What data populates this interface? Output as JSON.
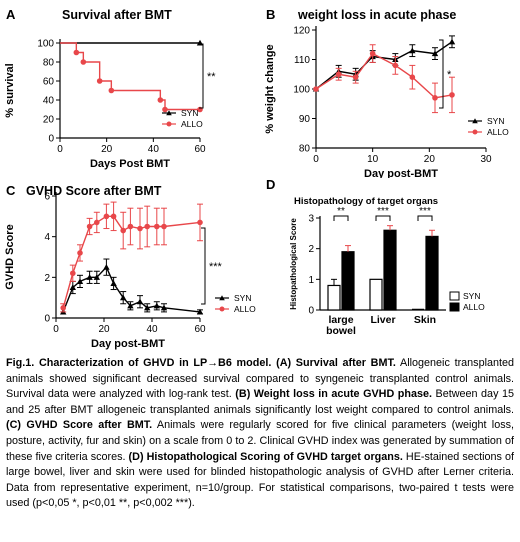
{
  "chart_data": [
    {
      "panel": "A",
      "type": "line",
      "step": true,
      "title": "Survival after BMT",
      "xlabel": "Days Post BMT",
      "ylabel": "% survival",
      "xlim": [
        0,
        60
      ],
      "ylim": [
        0,
        100
      ],
      "xticks": [
        "0",
        "20",
        "40",
        "60"
      ],
      "yticks": [
        "0",
        "20",
        "40",
        "60",
        "80",
        "100"
      ],
      "legend_position": "bottom-right",
      "significance": "**",
      "series": [
        {
          "name": "SYN",
          "color": "#000000",
          "marker": "triangle",
          "x": [
            0,
            60
          ],
          "y": [
            100,
            100
          ]
        },
        {
          "name": "ALLO",
          "color": "#e8474a",
          "marker": "circle",
          "x": [
            0,
            7,
            10,
            17,
            22,
            43,
            45,
            60
          ],
          "y": [
            100,
            90,
            80,
            60,
            50,
            40,
            30,
            30
          ]
        }
      ]
    },
    {
      "panel": "B",
      "type": "line",
      "title": "weight loss in acute phase",
      "xlabel": "Day post-BMT",
      "ylabel": "% weight change",
      "xlim": [
        0,
        30
      ],
      "ylim": [
        80,
        120
      ],
      "xticks": [
        "0",
        "10",
        "20",
        "30"
      ],
      "yticks": [
        "80",
        "90",
        "100",
        "110",
        "120"
      ],
      "legend_position": "bottom-right",
      "significance": "*",
      "series": [
        {
          "name": "SYN",
          "color": "#000000",
          "marker": "triangle",
          "x": [
            0,
            4,
            7,
            10,
            14,
            17,
            21,
            24
          ],
          "y": [
            100,
            106,
            105,
            111,
            110,
            113,
            112,
            116
          ],
          "err": [
            0,
            2,
            2,
            2,
            2,
            2,
            2,
            2
          ]
        },
        {
          "name": "ALLO",
          "color": "#e8474a",
          "marker": "circle",
          "x": [
            0,
            4,
            7,
            10,
            14,
            17,
            21,
            24
          ],
          "y": [
            100,
            105,
            104,
            112,
            108,
            104,
            97,
            98
          ],
          "err": [
            0,
            2,
            2,
            3,
            3,
            4,
            5,
            6
          ]
        }
      ]
    },
    {
      "panel": "C",
      "type": "line",
      "title": "GVHD Score after BMT",
      "xlabel": "Day post-BMT",
      "ylabel": "GVHD Score",
      "xlim": [
        0,
        60
      ],
      "ylim": [
        0,
        6
      ],
      "xticks": [
        "0",
        "20",
        "40",
        "60"
      ],
      "yticks": [
        "0",
        "2",
        "4",
        "6"
      ],
      "legend_position": "bottom-right",
      "significance": "***",
      "series": [
        {
          "name": "SYN",
          "color": "#000000",
          "marker": "triangle",
          "x": [
            3,
            7,
            10,
            14,
            17,
            21,
            24,
            28,
            31,
            35,
            38,
            42,
            45,
            60
          ],
          "y": [
            0.3,
            1.5,
            1.8,
            2.0,
            2.0,
            2.5,
            1.7,
            1.0,
            0.6,
            0.8,
            0.5,
            0.6,
            0.5,
            0.3
          ],
          "err": [
            0,
            0.3,
            0.3,
            0.3,
            0.3,
            0.4,
            0.3,
            0.3,
            0.2,
            0.3,
            0.2,
            0.2,
            0.2,
            0.1
          ]
        },
        {
          "name": "ALLO",
          "color": "#e8474a",
          "marker": "circle",
          "x": [
            3,
            7,
            10,
            14,
            17,
            21,
            24,
            28,
            31,
            35,
            38,
            42,
            45,
            60
          ],
          "y": [
            0.5,
            2.2,
            3.2,
            4.5,
            4.7,
            5.0,
            5.0,
            4.3,
            4.5,
            4.4,
            4.5,
            4.5,
            4.5,
            4.7
          ],
          "err": [
            0.2,
            0.4,
            0.4,
            0.4,
            0.5,
            0.6,
            0.7,
            0.9,
            0.9,
            1.0,
            1.0,
            0.9,
            0.9,
            0.9
          ]
        }
      ]
    },
    {
      "panel": "D",
      "type": "bar",
      "title": "Histopathology of target organs",
      "ylabel": "Histopathological Score",
      "ylim": [
        0,
        3
      ],
      "yticks": [
        "0",
        "1",
        "2",
        "3"
      ],
      "categories": [
        [
          "large",
          "bowel"
        ],
        [
          "Liver"
        ],
        [
          "Skin"
        ]
      ],
      "legend_position": "right",
      "series": [
        {
          "name": "SYN",
          "color": "#ffffff",
          "values": [
            0.8,
            1.0,
            0.0
          ],
          "err": [
            0.2,
            0.0,
            0.0
          ]
        },
        {
          "name": "ALLO",
          "color": "#000000",
          "values": [
            1.9,
            2.6,
            2.4
          ],
          "err": [
            0.2,
            0.15,
            0.2
          ]
        }
      ],
      "significance": [
        "**",
        "***",
        "***"
      ]
    }
  ],
  "panel_letters": {
    "a": "A",
    "b": "B",
    "c": "C",
    "d": "D"
  },
  "caption": {
    "label": "Fig.1.",
    "head": "Characterization of GHVD in LP→B6 model.",
    "a_title": "(A) Survival after BMT.",
    "a_text": " Allogeneic transplanted animals showed significant decreased survival compared to syngeneic transplanted control animals. Survival data were analyzed with log-rank test. ",
    "b_title": "(B) Weight loss in acute GVHD phase.",
    "b_text": " Between day 15 and 25 after BMT allogeneic transplanted animals significantly lost weight compared to control animals. ",
    "c_title": "(C) GVHD Score after BMT.",
    "c_text": " Animals were regularly scored for five clinical parameters (weight loss, posture, activity, fur and skin) on a scale from 0 to 2. Clinical GVHD index was generated by summation of these five criteria scores. ",
    "d_title": "(D) Histopathological Scoring of GVHD target organs.",
    "d_text": " HE-stained sections of large bowel, liver and skin were used for blinded histopathologic analysis of GVHD after Lerner criteria. Data from representative experiment, n=10/group. For statistical comparisons, two-paired t tests were used (p<0,05 *, p<0,01 **, p<0,002 ***)."
  }
}
